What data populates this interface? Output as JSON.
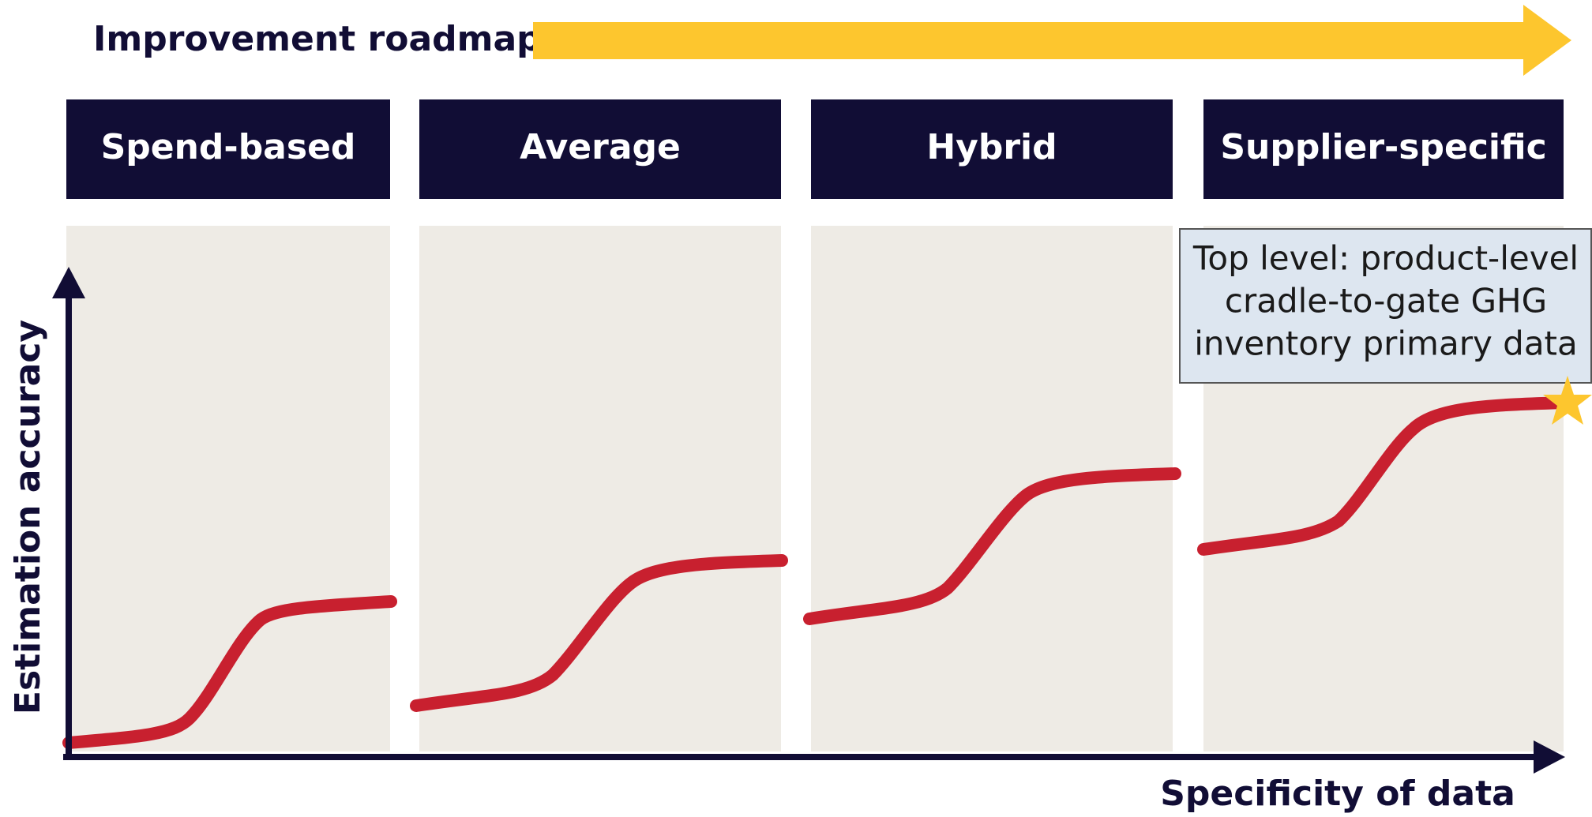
{
  "roadmap_label": "Improvement roadmap",
  "stages": [
    {
      "label": "Spend-based"
    },
    {
      "label": "Average"
    },
    {
      "label": "Hybrid"
    },
    {
      "label": "Supplier-specific"
    }
  ],
  "y_axis_label": "Estimation accuracy",
  "x_axis_label": "Specificity of data",
  "callout": {
    "lines": [
      "Top level: product-level",
      "cradle-to-gate GHG",
      "inventory primary data"
    ]
  }
}
